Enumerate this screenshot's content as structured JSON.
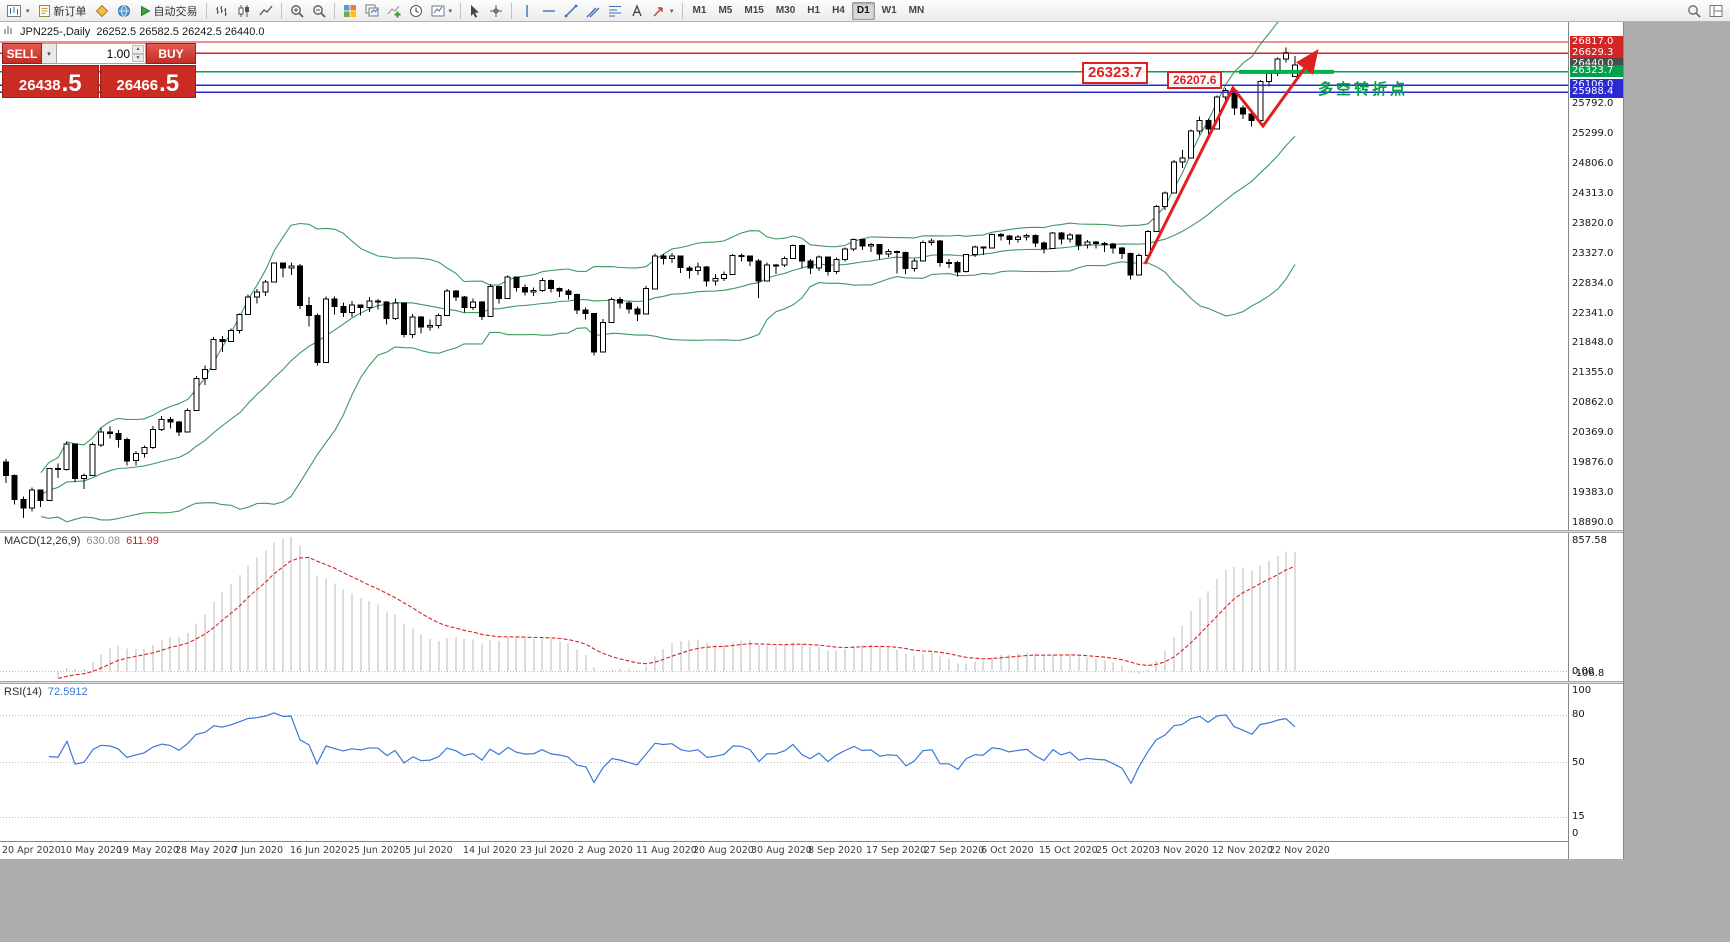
{
  "toolbar": {
    "items": [
      {
        "name": "chart-window-button",
        "icon": "chart-window",
        "caret": true
      },
      {
        "name": "new-order-button",
        "icon": "new-order",
        "label": "新订单"
      },
      {
        "name": "alerts-button",
        "icon": "gold-diamond"
      },
      {
        "name": "community-button",
        "icon": "globe"
      },
      {
        "name": "autotrade-button",
        "icon": "play",
        "label": "自动交易"
      },
      {
        "type": "sep"
      },
      {
        "name": "bar-chart-button",
        "icon": "chart-bars"
      },
      {
        "name": "candlestick-chart-button",
        "icon": "chart-candles"
      },
      {
        "name": "line-chart-button",
        "icon": "chart-line"
      },
      {
        "type": "sep"
      },
      {
        "name": "zoom-in-button",
        "icon": "zoom-in"
      },
      {
        "name": "zoom-out-button",
        "icon": "zoom-out"
      },
      {
        "type": "sep"
      },
      {
        "name": "tile-windows-button",
        "icon": "tile"
      },
      {
        "name": "cascade-windows-button",
        "icon": "cascade"
      },
      {
        "name": "indicators-button",
        "icon": "indicator-add"
      },
      {
        "name": "periods-button",
        "icon": "clock"
      },
      {
        "name": "templates-button",
        "icon": "template",
        "caret": true
      },
      {
        "type": "sep"
      },
      {
        "name": "cursor-button",
        "icon": "cursor"
      },
      {
        "name": "crosshair-button",
        "icon": "crosshair"
      },
      {
        "type": "sep"
      },
      {
        "name": "vertical-line-button",
        "icon": "vline"
      },
      {
        "name": "horizontal-line-button",
        "icon": "hline"
      },
      {
        "name": "trendline-button",
        "icon": "trendline"
      },
      {
        "name": "channel-button",
        "icon": "channel"
      },
      {
        "name": "fibonacci-button",
        "icon": "fibo"
      },
      {
        "name": "text-tool-button",
        "icon": "text"
      },
      {
        "name": "arrows-tool-button",
        "icon": "arrow-tool",
        "caret": true
      },
      {
        "type": "sep"
      },
      {
        "type": "timeframes"
      }
    ],
    "right_items": [
      {
        "name": "search-button",
        "icon": "search"
      },
      {
        "name": "layout-button",
        "icon": "layout"
      }
    ],
    "timeframes": [
      "M1",
      "M5",
      "M15",
      "M30",
      "H1",
      "H4",
      "D1",
      "W1",
      "MN"
    ],
    "active_timeframe": "D1"
  },
  "chart": {
    "title_symbol": "JPN225-,Daily",
    "title_ohlc": "26252.5 26582.5 26242.5 26440.0",
    "trade_panel": {
      "sell_label": "SELL",
      "buy_label": "BUY",
      "volume": "1.00",
      "sell_price_main": "26438",
      "sell_price_frac": ".5",
      "buy_price_main": "26466",
      "buy_price_frac": ".5"
    },
    "levels": [
      {
        "text": "26817.0",
        "price": 26817.0,
        "bg": "#d42424"
      },
      {
        "text": "26629.3",
        "price": 26629.3,
        "bg": "#d42424"
      },
      {
        "text": "26440.0",
        "price": 26440.0,
        "bg": "#4a4a4a"
      },
      {
        "text": "26323.7",
        "price": 26323.7,
        "bg": "#00a14b"
      },
      {
        "text": "26106.0",
        "price": 26106.0,
        "bg": "#2a2ad0"
      },
      {
        "text": "25988.4",
        "price": 25988.4,
        "bg": "#2a2ad0"
      }
    ],
    "price_axis_ticks": [
      "25792.0",
      "25299.0",
      "24806.0",
      "24313.0",
      "23820.0",
      "23327.0",
      "22834.0",
      "22341.0",
      "21848.0",
      "21355.0",
      "20862.0",
      "20369.0",
      "19876.0",
      "19383.0",
      "18890.0"
    ],
    "annotations": {
      "price_label_1": "26323.7",
      "price_label_2": "26207.6",
      "note_cn": "多空转折点"
    }
  },
  "macd": {
    "title": "MACD(12,26,9)",
    "value_main": "630.08",
    "value_signal": "611.99",
    "axis_max": "857.58",
    "axis_zero": "0.00",
    "axis_min": "-106.8"
  },
  "rsi": {
    "title": "RSI(14)",
    "value": "72.5912",
    "axis": [
      100,
      80,
      50,
      15,
      0
    ],
    "levels": [
      80,
      50,
      15
    ]
  },
  "date_axis": {
    "labels": [
      "20 Apr 2020",
      "10 May 2020",
      "19 May 2020",
      "28 May 2020",
      "7 Jun 2020",
      "16 Jun 2020",
      "25 Jun 2020",
      "5 Jul 2020",
      "14 Jul 2020",
      "23 Jul 2020",
      "2 Aug 2020",
      "11 Aug 2020",
      "20 Aug 2020",
      "30 Aug 2020",
      "8 Sep 2020",
      "17 Sep 2020",
      "27 Sep 2020",
      "6 Oct 2020",
      "15 Oct 2020",
      "25 Oct 2020",
      "3 Nov 2020",
      "12 Nov 2020",
      "22 Nov 2020"
    ]
  },
  "chart_data": {
    "type": "candlestick",
    "symbol": "JPN225",
    "timeframe": "Daily",
    "ohlc_current": {
      "open": 26252.5,
      "high": 26582.5,
      "low": 26242.5,
      "close": 26440.0
    },
    "indicators": {
      "bollinger": {
        "period": 20,
        "deviation": 2
      },
      "macd": [
        12,
        26,
        9
      ],
      "rsi": 14
    },
    "colors": {
      "bollinger": "#3c9a5f",
      "macd_hist": "#b9b9b9",
      "macd_signal": "#d92525",
      "rsi_line": "#3c78d8",
      "trend": "#e01f1f",
      "support": "#00b14f",
      "up_candle": "#ffffff",
      "down_candle": "#000000"
    },
    "hlines": [
      {
        "price": 26817.0,
        "color": "#d42424"
      },
      {
        "price": 26629.3,
        "color": "#d42424"
      },
      {
        "price": 26323.7,
        "color": "#00a14b"
      },
      {
        "price": 26106.0,
        "color": "#2a2ad0"
      },
      {
        "price": 25988.4,
        "color": "#2a2ad0"
      }
    ],
    "trend_segment": {
      "price": 26323.7,
      "from": 142.5,
      "to": 153.5
    },
    "zigzag": [
      [
        131.7,
        23150
      ],
      [
        141.8,
        26060
      ],
      [
        145.3,
        25430
      ],
      [
        151.3,
        26620
      ]
    ],
    "candles": [
      [
        19897,
        19945,
        19551,
        19669
      ],
      [
        19669,
        19687,
        19193,
        19280
      ],
      [
        19280,
        19322,
        18971,
        19138
      ],
      [
        19138,
        19474,
        19082,
        19429
      ],
      [
        19429,
        19442,
        19155,
        19262
      ],
      [
        19262,
        19796,
        19262,
        19783
      ],
      [
        19783,
        19871,
        19630,
        19771
      ],
      [
        19771,
        20236,
        19750,
        20194
      ],
      [
        20194,
        20202,
        19566,
        19619
      ],
      [
        19619,
        19705,
        19448,
        19675
      ],
      [
        19675,
        20216,
        19672,
        20179
      ],
      [
        20179,
        20466,
        20140,
        20391
      ],
      [
        20391,
        20479,
        20279,
        20366
      ],
      [
        20366,
        20419,
        20132,
        20267
      ],
      [
        20267,
        20296,
        19836,
        19915
      ],
      [
        19915,
        20079,
        19834,
        20037
      ],
      [
        20037,
        20166,
        19966,
        20134
      ],
      [
        20134,
        20487,
        20109,
        20433
      ],
      [
        20433,
        20655,
        20405,
        20595
      ],
      [
        20595,
        20632,
        20444,
        20552
      ],
      [
        20552,
        20566,
        20321,
        20388
      ],
      [
        20388,
        20776,
        20388,
        20741
      ],
      [
        20741,
        21314,
        20741,
        21271
      ],
      [
        21271,
        21488,
        21161,
        21419
      ],
      [
        21419,
        21953,
        21419,
        21916
      ],
      [
        21916,
        21975,
        21710,
        21878
      ],
      [
        21878,
        22096,
        21878,
        22062
      ],
      [
        22062,
        22342,
        22011,
        22326
      ],
      [
        22326,
        22654,
        22326,
        22614
      ],
      [
        22614,
        22748,
        22505,
        22696
      ],
      [
        22696,
        22896,
        22631,
        22864
      ],
      [
        22864,
        23185,
        22864,
        23178
      ],
      [
        23178,
        23185,
        22933,
        23091
      ],
      [
        23091,
        23186,
        22976,
        23125
      ],
      [
        23125,
        23155,
        22420,
        22473
      ],
      [
        22473,
        22610,
        22127,
        22305
      ],
      [
        22305,
        22338,
        21486,
        21531
      ],
      [
        21531,
        22625,
        21531,
        22582
      ],
      [
        22582,
        22625,
        22326,
        22456
      ],
      [
        22456,
        22522,
        22283,
        22355
      ],
      [
        22355,
        22549,
        22288,
        22479
      ],
      [
        22479,
        22490,
        22311,
        22437
      ],
      [
        22437,
        22614,
        22368,
        22549
      ],
      [
        22549,
        22580,
        22410,
        22534
      ],
      [
        22534,
        22548,
        22158,
        22260
      ],
      [
        22260,
        22587,
        22233,
        22512
      ],
      [
        22512,
        22520,
        21945,
        21995
      ],
      [
        21995,
        22335,
        21937,
        22288
      ],
      [
        22288,
        22303,
        22012,
        22122
      ],
      [
        22122,
        22242,
        22060,
        22146
      ],
      [
        22146,
        22342,
        22096,
        22306
      ],
      [
        22306,
        22742,
        22306,
        22714
      ],
      [
        22714,
        22726,
        22549,
        22614
      ],
      [
        22614,
        22627,
        22361,
        22439
      ],
      [
        22439,
        22586,
        22402,
        22529
      ],
      [
        22529,
        22551,
        22235,
        22291
      ],
      [
        22291,
        22827,
        22291,
        22784
      ],
      [
        22784,
        22791,
        22508,
        22587
      ],
      [
        22587,
        22965,
        22587,
        22946
      ],
      [
        22946,
        22951,
        22703,
        22770
      ],
      [
        22770,
        22822,
        22636,
        22696
      ],
      [
        22696,
        22767,
        22630,
        22717
      ],
      [
        22717,
        22929,
        22697,
        22884
      ],
      [
        22884,
        22902,
        22692,
        22752
      ],
      [
        22752,
        22771,
        22611,
        22715
      ],
      [
        22715,
        22742,
        22572,
        22657
      ],
      [
        22657,
        22668,
        22331,
        22397
      ],
      [
        22397,
        22442,
        22247,
        22339
      ],
      [
        22339,
        22352,
        21653,
        21710
      ],
      [
        21710,
        22249,
        21710,
        22195
      ],
      [
        22195,
        22609,
        22195,
        22573
      ],
      [
        22573,
        22615,
        22427,
        22515
      ],
      [
        22515,
        22540,
        22343,
        22418
      ],
      [
        22418,
        22454,
        22219,
        22330
      ],
      [
        22330,
        22794,
        22330,
        22750
      ],
      [
        22750,
        23332,
        22750,
        23290
      ],
      [
        23290,
        23322,
        23148,
        23250
      ],
      [
        23250,
        23341,
        23177,
        23289
      ],
      [
        23289,
        23295,
        23009,
        23096
      ],
      [
        23096,
        23127,
        22920,
        23051
      ],
      [
        23051,
        23183,
        22977,
        23111
      ],
      [
        23111,
        23122,
        22789,
        22880
      ],
      [
        22880,
        22995,
        22800,
        22920
      ],
      [
        22920,
        23034,
        22876,
        22986
      ],
      [
        22986,
        23326,
        22986,
        23296
      ],
      [
        23296,
        23333,
        23200,
        23290
      ],
      [
        23290,
        23302,
        23126,
        23208
      ],
      [
        23208,
        23240,
        22594,
        22882
      ],
      [
        22882,
        23179,
        22882,
        23140
      ],
      [
        23140,
        23161,
        22997,
        23138
      ],
      [
        23138,
        23284,
        23105,
        23247
      ],
      [
        23247,
        23482,
        23247,
        23466
      ],
      [
        23466,
        23478,
        23093,
        23205
      ],
      [
        23205,
        23237,
        22996,
        23090
      ],
      [
        23090,
        23296,
        23045,
        23274
      ],
      [
        23274,
        23280,
        22972,
        23033
      ],
      [
        23033,
        23265,
        22992,
        23235
      ],
      [
        23235,
        23426,
        23195,
        23406
      ],
      [
        23406,
        23577,
        23370,
        23559
      ],
      [
        23559,
        23577,
        23392,
        23455
      ],
      [
        23455,
        23502,
        23358,
        23476
      ],
      [
        23476,
        23484,
        23228,
        23319
      ],
      [
        23319,
        23402,
        23274,
        23360
      ],
      [
        23360,
        23380,
        23005,
        23346
      ],
      [
        23346,
        23363,
        22992,
        23087
      ],
      [
        23087,
        23250,
        23032,
        23205
      ],
      [
        23205,
        23542,
        23205,
        23512
      ],
      [
        23512,
        23577,
        23461,
        23539
      ],
      [
        23539,
        23553,
        23115,
        23185
      ],
      [
        23185,
        23244,
        23092,
        23185
      ],
      [
        23185,
        23205,
        22951,
        23030
      ],
      [
        23030,
        23326,
        23016,
        23312
      ],
      [
        23312,
        23461,
        23274,
        23434
      ],
      [
        23434,
        23446,
        23303,
        23423
      ],
      [
        23423,
        23663,
        23423,
        23647
      ],
      [
        23647,
        23667,
        23542,
        23620
      ],
      [
        23620,
        23638,
        23477,
        23559
      ],
      [
        23559,
        23639,
        23509,
        23601
      ],
      [
        23601,
        23652,
        23547,
        23627
      ],
      [
        23627,
        23645,
        23436,
        23507
      ],
      [
        23507,
        23525,
        23327,
        23411
      ],
      [
        23411,
        23689,
        23411,
        23671
      ],
      [
        23671,
        23682,
        23480,
        23567
      ],
      [
        23567,
        23668,
        23516,
        23639
      ],
      [
        23639,
        23648,
        23390,
        23474
      ],
      [
        23474,
        23554,
        23417,
        23517
      ],
      [
        23517,
        23540,
        23411,
        23494
      ],
      [
        23494,
        23519,
        23358,
        23486
      ],
      [
        23486,
        23507,
        23332,
        23419
      ],
      [
        23419,
        23441,
        23237,
        23332
      ],
      [
        23332,
        23348,
        22902,
        22977
      ],
      [
        22977,
        23332,
        22977,
        23295
      ],
      [
        23295,
        23722,
        23295,
        23695
      ],
      [
        23695,
        24132,
        23695,
        24105
      ],
      [
        24105,
        24351,
        24050,
        24325
      ],
      [
        24325,
        24869,
        24325,
        24839
      ],
      [
        24839,
        25035,
        24743,
        24906
      ],
      [
        24906,
        25373,
        24906,
        25349
      ],
      [
        25349,
        25587,
        25296,
        25521
      ],
      [
        25521,
        25557,
        25212,
        25386
      ],
      [
        25386,
        25937,
        25386,
        25907
      ],
      [
        25907,
        26058,
        25843,
        26014
      ],
      [
        26014,
        26036,
        25612,
        25728
      ],
      [
        25728,
        25772,
        25547,
        25634
      ],
      [
        25634,
        25675,
        25421,
        25527
      ],
      [
        25527,
        26190,
        25527,
        26165
      ],
      [
        26165,
        26339,
        26086,
        26297
      ],
      [
        26297,
        26563,
        26257,
        26537
      ],
      [
        26537,
        26723,
        26477,
        26645
      ],
      [
        26252.5,
        26582.5,
        26242.5,
        26440.0
      ]
    ]
  }
}
